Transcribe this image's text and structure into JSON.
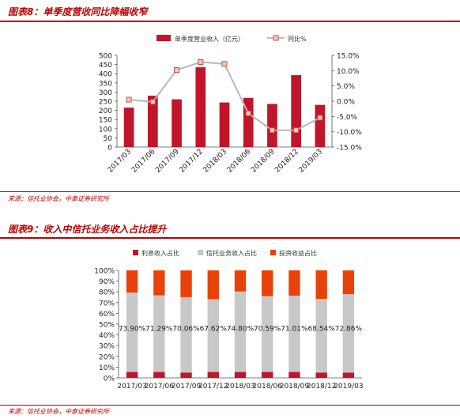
{
  "figure8": {
    "title": "图表8：单季度营收同比降幅收窄",
    "source": "来源：信托业协会，中泰证券研究所",
    "chart_data": {
      "type": "bar+line",
      "categories": [
        "2017/03",
        "2017/06",
        "2017/09",
        "2017/12",
        "2018/03",
        "2018/06",
        "2018/09",
        "2018/12",
        "2019/03"
      ],
      "series": [
        {
          "name": "单季度营业收入（亿元）",
          "type": "bar",
          "axis": "left",
          "color": "#c0152a",
          "values": [
            215,
            280,
            260,
            435,
            243,
            268,
            235,
            392,
            230
          ]
        },
        {
          "name": "同比%",
          "type": "line",
          "axis": "right",
          "color": "#b8b8b8",
          "marker_color": "#d04a40",
          "values": [
            0.5,
            -0.2,
            10.2,
            12.8,
            12.2,
            -4.0,
            -9.5,
            -9.5,
            -5.4
          ]
        }
      ],
      "yticks_left": [
        "0",
        "50",
        "100",
        "150",
        "200",
        "250",
        "300",
        "350",
        "400",
        "450",
        "500"
      ],
      "ylim_left": [
        0,
        500
      ],
      "yticks_right": [
        "-15.0%",
        "-10.0%",
        "-5.0%",
        "0.0%",
        "5.0%",
        "10.0%",
        "15.0%"
      ],
      "ylim_right": [
        -15,
        15
      ],
      "legend_position": "top"
    }
  },
  "figure9": {
    "title": "图表9：收入中信托业务收入占比提升",
    "source": "来源：信托业协会，中泰证券研究所",
    "chart_data": {
      "type": "stacked-bar",
      "categories": [
        "2017/03",
        "2017/06",
        "2017/09",
        "2017/12",
        "2018/03",
        "2018/06",
        "2018/09",
        "2018/12",
        "2019/03"
      ],
      "series": [
        {
          "name": "利息收入占比",
          "color": "#c0152a",
          "values": [
            5.5,
            5.5,
            5.0,
            5.5,
            5.5,
            5.5,
            5.5,
            5.0,
            5.0
          ]
        },
        {
          "name": "信托业务收入占比",
          "color": "#c8c8c8",
          "values": [
            73.9,
            71.29,
            70.06,
            67.62,
            74.8,
            70.59,
            71.01,
            68.54,
            72.86
          ],
          "labels": [
            "73.90%",
            "71.29%",
            "70.06%",
            "67.62%",
            "74.80%",
            "70.59%",
            "71.01%",
            "68.54%",
            "72.86%"
          ]
        },
        {
          "name": "投资收益占比",
          "color": "#e8420a",
          "values": [
            20.6,
            23.2,
            24.9,
            26.9,
            19.7,
            23.9,
            23.5,
            26.5,
            22.1
          ]
        }
      ],
      "yticks": [
        "0%",
        "10%",
        "20%",
        "30%",
        "40%",
        "50%",
        "60%",
        "70%",
        "80%",
        "90%",
        "100%"
      ],
      "ylim": [
        0,
        100
      ],
      "legend_position": "top"
    }
  }
}
